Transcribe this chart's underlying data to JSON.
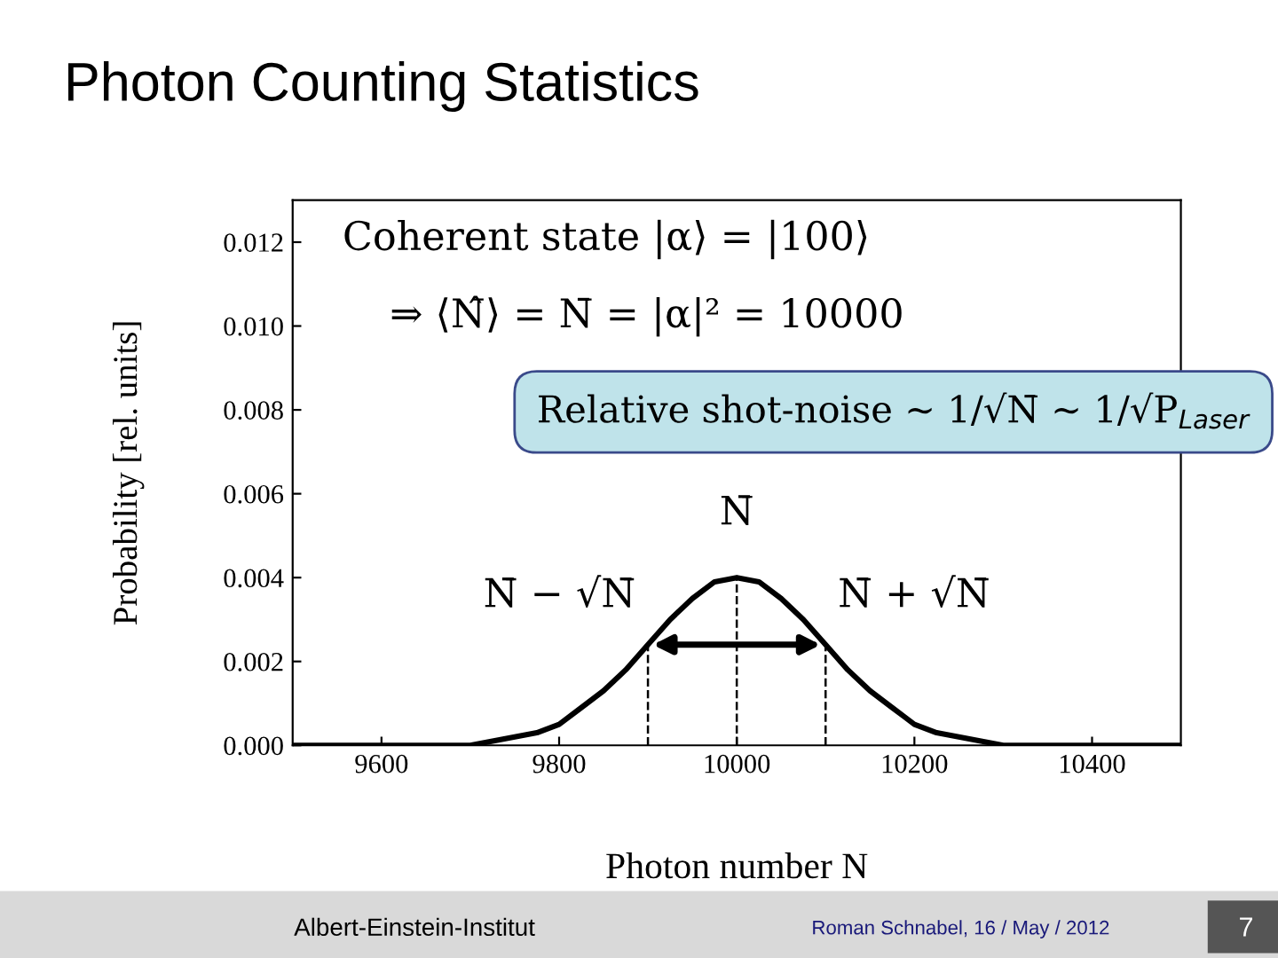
{
  "chart_data": {
    "type": "line",
    "title": "Photon Counting Statistics",
    "xlabel": "Photon number N",
    "ylabel": "Probability [rel. units]",
    "x": [
      9500,
      9600,
      9650,
      9700,
      9750,
      9775,
      9800,
      9825,
      9850,
      9875,
      9900,
      9925,
      9950,
      9975,
      10000,
      10025,
      10050,
      10075,
      10100,
      10125,
      10150,
      10175,
      10200,
      10225,
      10250,
      10300,
      10350,
      10400,
      10500
    ],
    "series": [
      {
        "color": "#000000",
        "values": [
          0.0,
          0.0,
          0.0,
          0.0,
          0.0002,
          0.0003,
          0.0005,
          0.0009,
          0.0013,
          0.0018,
          0.0024,
          0.003,
          0.0035,
          0.0039,
          0.004,
          0.0039,
          0.0035,
          0.003,
          0.0024,
          0.0018,
          0.0013,
          0.0009,
          0.0005,
          0.0003,
          0.0002,
          0.0,
          0.0,
          0.0,
          0.0
        ]
      }
    ],
    "xlim": [
      9500,
      10500
    ],
    "xticks": [
      9600,
      9800,
      10000,
      10200,
      10400
    ],
    "ylim": [
      0,
      0.013
    ],
    "yticks": [
      {
        "value": 0,
        "label": "0.000"
      },
      0.002,
      0.004,
      0.006,
      0.008,
      {
        "value": 0.01,
        "label": "0.010"
      },
      0.012
    ],
    "marker": "none",
    "line_style": "solid",
    "grid": false,
    "legend": false,
    "ref_lines": [
      {
        "axis": "x",
        "value": 9900,
        "line_style": "dashed"
      },
      {
        "axis": "x",
        "value": 10000,
        "line_style": "dashed"
      },
      {
        "axis": "x",
        "value": 10100,
        "line_style": "dashed"
      }
    ],
    "annotations": [
      "Coherent state |α⟩ = |100⟩",
      "⇒ ⟨N̂⟩ = N̄ = |α|² = 10000",
      "Relative shot-noise ~ 1/√N̄ ~ 1/√P$_{Laser}$",
      "N̄",
      {
        "text": "N̄ − √N̄",
        "x": 9900,
        "y": 0.0024
      },
      {
        "text": "N̄ + √N̄",
        "x": 10100,
        "y": 0.0024
      },
      "Albert-Einstein-Institut",
      "Roman Schnabel, 16 / May / 2012",
      "7"
    ]
  }
}
